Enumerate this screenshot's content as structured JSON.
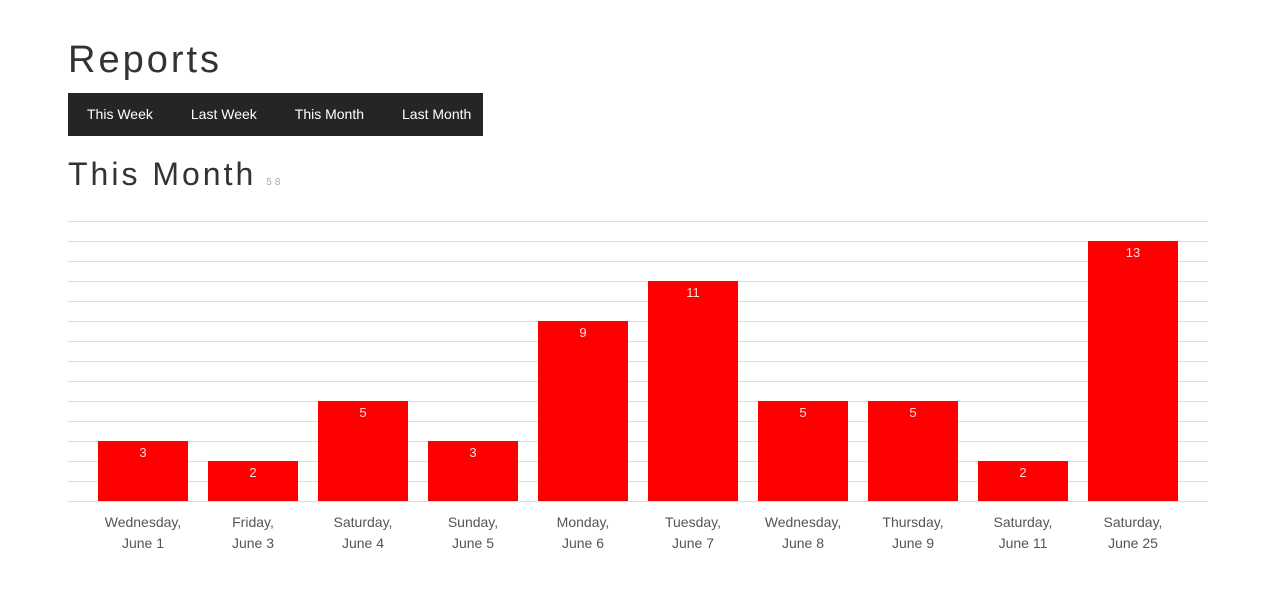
{
  "header": {
    "title": "Reports"
  },
  "tabs": [
    {
      "label": "This Week"
    },
    {
      "label": "Last Week"
    },
    {
      "label": "This Month"
    },
    {
      "label": "Last Month"
    }
  ],
  "section": {
    "title": "This Month",
    "total": "58"
  },
  "colors": {
    "bar": "#ff0000",
    "grid": "#dddddd",
    "tab_bar_bg": "#252525"
  },
  "chart_data": {
    "type": "bar",
    "title": "",
    "xlabel": "",
    "ylabel": "",
    "categories": [
      [
        "Wednesday,",
        "June 1"
      ],
      [
        "Friday,",
        "June 3"
      ],
      [
        "Saturday,",
        "June 4"
      ],
      [
        "Sunday,",
        "June 5"
      ],
      [
        "Monday,",
        "June 6"
      ],
      [
        "Tuesday,",
        "June 7"
      ],
      [
        "Wednesday,",
        "June 8"
      ],
      [
        "Thursday,",
        "June 9"
      ],
      [
        "Saturday,",
        "June 11"
      ],
      [
        "Saturday,",
        "June 25"
      ]
    ],
    "values": [
      3,
      2,
      5,
      3,
      9,
      11,
      5,
      5,
      2,
      13
    ],
    "ylim": [
      0,
      14
    ],
    "grid": true,
    "data_labels": true,
    "legend": false
  }
}
